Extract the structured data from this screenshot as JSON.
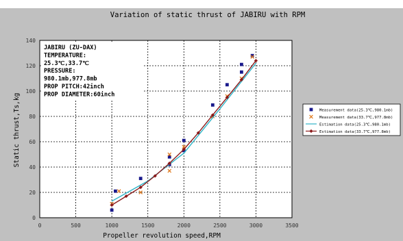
{
  "chart_data": {
    "type": "scatter",
    "title": "Variation of static thrust of JABIRU with RPM",
    "xlabel": "Propeller revolution speed,RPM",
    "ylabel": "Static thrust,Ts,kg",
    "xlim": [
      0,
      3500
    ],
    "ylim": [
      0,
      140
    ],
    "xticks": [
      0,
      500,
      1000,
      1500,
      2000,
      2500,
      3000,
      3500
    ],
    "yticks": [
      0,
      20,
      40,
      60,
      80,
      100,
      120,
      140
    ],
    "grid": true,
    "legend_position": "right",
    "annotation": [
      "JABIRU (ZU-DAX)",
      "TEMPERATURE:",
      "25.3℃,33.7℃",
      "PRESSURE:",
      "980.1mb,977.8mb",
      "PROP PITCH:42inch",
      "PROP DIAMETER:60inch"
    ],
    "series": [
      {
        "name": "Measurement data(25.3℃,980.1mb)",
        "color": "#1a1a8c",
        "marker": "square",
        "x": [
          1000,
          1050,
          1400,
          1800,
          1800,
          2000,
          2000,
          2400,
          2600,
          2800,
          2800,
          2950
        ],
        "y": [
          6,
          21,
          31,
          42,
          48,
          53,
          61,
          89,
          105,
          121,
          115,
          128
        ]
      },
      {
        "name": "Measurement data(33.7℃,977.8mb)",
        "color": "#e07b20",
        "marker": "cross",
        "x": [
          1000,
          1100,
          1400,
          1800,
          1800,
          2000,
          2400,
          2600,
          2800,
          2950
        ],
        "y": [
          11,
          21,
          20,
          37,
          50,
          56,
          80,
          96,
          110,
          127
        ]
      },
      {
        "name": "Estimation data(25.3℃,980.1mb)",
        "color": "#2fb5c8",
        "marker": "line",
        "x": [
          1000,
          1500,
          2000,
          2500,
          3000
        ],
        "y": [
          13,
          29,
          51,
          86,
          122
        ]
      },
      {
        "name": "Estimation data(33.7℃,977.8mb)",
        "color": "#8b1a1a",
        "marker": "diamond-line",
        "x": [
          1000,
          1200,
          1400,
          1600,
          1800,
          2000,
          2200,
          2400,
          2600,
          2800,
          3000
        ],
        "y": [
          10,
          17,
          24,
          33,
          43,
          54,
          67,
          81,
          95,
          109,
          124
        ]
      }
    ]
  }
}
